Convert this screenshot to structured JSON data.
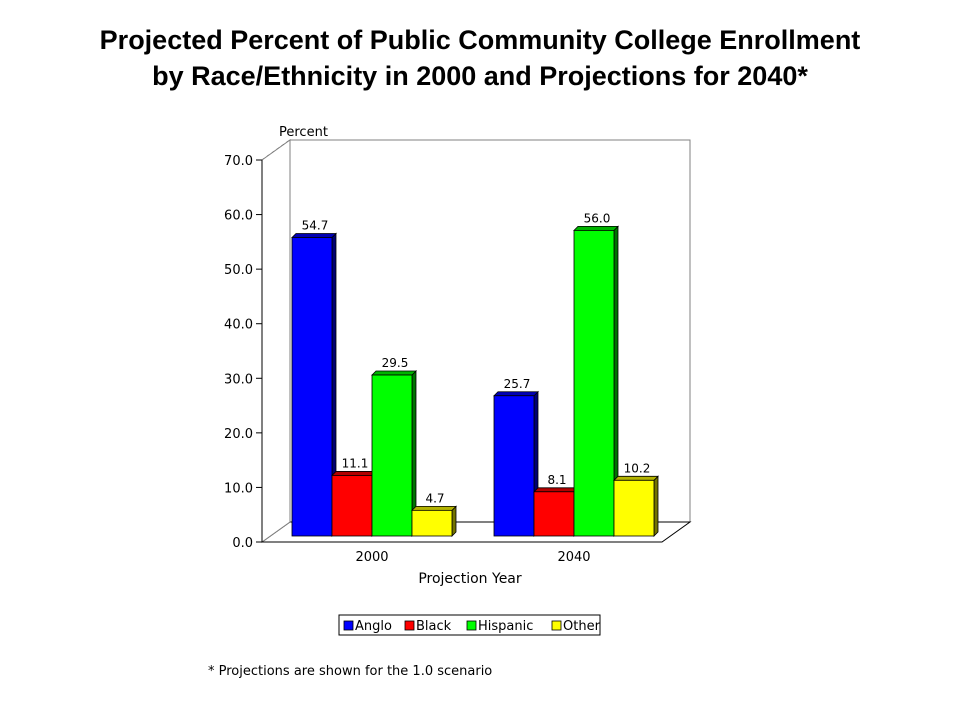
{
  "title_line1": "Projected Percent of Public Community College Enrollment",
  "title_line2": "by Race/Ethnicity in 2000 and Projections for 2040*",
  "footnote": "* Projections are shown for the 1.0 scenario",
  "chart_data": {
    "type": "bar",
    "title": "Projected Percent of Public Community College Enrollment by Race/Ethnicity in 2000 and Projections for 2040*",
    "ylabel": "Percent",
    "xlabel": "Projection Year",
    "categories": [
      "2000",
      "2040"
    ],
    "ylim": [
      0,
      70
    ],
    "yticks": [
      "0.0",
      "10.0",
      "20.0",
      "30.0",
      "40.0",
      "50.0",
      "60.0",
      "70.0"
    ],
    "grid": "horizontal dashed",
    "legend_position": "bottom",
    "series": [
      {
        "name": "Anglo",
        "color": "#0000ff",
        "values": [
          54.7,
          25.7
        ],
        "labels": [
          "54.7",
          "25.7"
        ]
      },
      {
        "name": "Black",
        "color": "#ff0000",
        "values": [
          11.1,
          8.1
        ],
        "labels": [
          "11.1",
          "8.1"
        ]
      },
      {
        "name": "Hispanic",
        "color": "#00ff00",
        "values": [
          29.5,
          56.0
        ],
        "labels": [
          "29.5",
          "56.0"
        ]
      },
      {
        "name": "Other",
        "color": "#ffff00",
        "values": [
          4.7,
          10.2
        ],
        "labels": [
          "4.7",
          "10.2"
        ]
      }
    ]
  }
}
